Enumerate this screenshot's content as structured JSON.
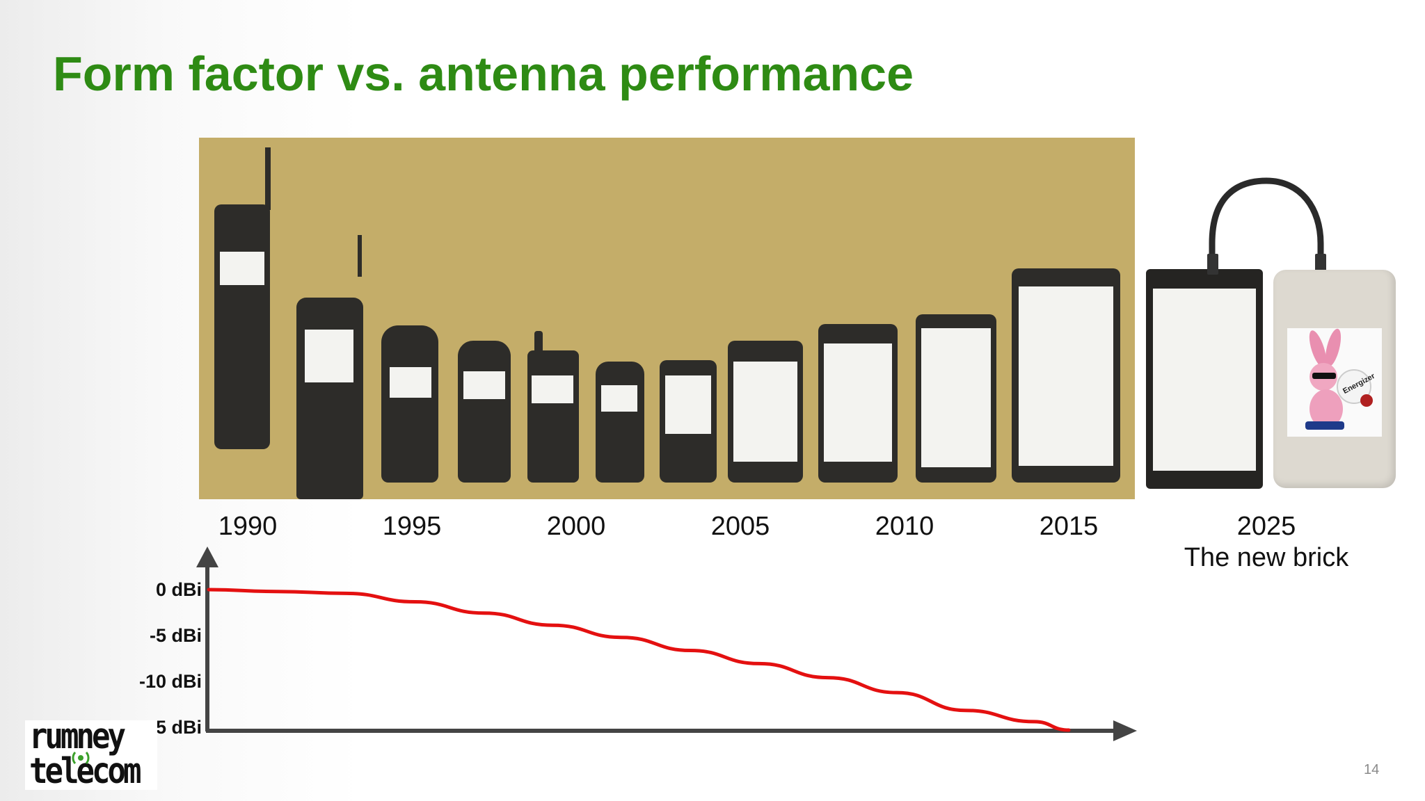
{
  "slide": {
    "title": "Form factor vs. antenna performance",
    "page_number": "14"
  },
  "timeline": {
    "years": [
      "1990",
      "1995",
      "2000",
      "2005",
      "2010",
      "2015",
      "2025"
    ],
    "brick_caption": "The new brick"
  },
  "chart_data": {
    "type": "line",
    "title": "",
    "xlabel": "",
    "ylabel": "",
    "y_tick_labels": [
      "0 dBi",
      "-5 dBi",
      "-10 dBi",
      "-15 dBi"
    ],
    "y_ticks": [
      0,
      -5,
      -10,
      -15
    ],
    "ylim": [
      -15,
      0
    ],
    "xlim": [
      1990,
      2015
    ],
    "series": [
      {
        "x": [
          1990,
          1992,
          1994,
          1996,
          1998,
          2000,
          2002,
          2004,
          2006,
          2008,
          2010,
          2012,
          2014,
          2015
        ],
        "y": [
          0,
          -0.2,
          -0.4,
          -1.3,
          -2.5,
          -3.8,
          -5.1,
          -6.5,
          -7.9,
          -9.4,
          -11.0,
          -12.9,
          -14.1,
          -15.0
        ]
      }
    ],
    "line_color": "#e41010",
    "grid": false
  },
  "logo": {
    "line1": "rumney",
    "line2": "telecom"
  },
  "powerbank": {
    "brand": "Energizer"
  }
}
